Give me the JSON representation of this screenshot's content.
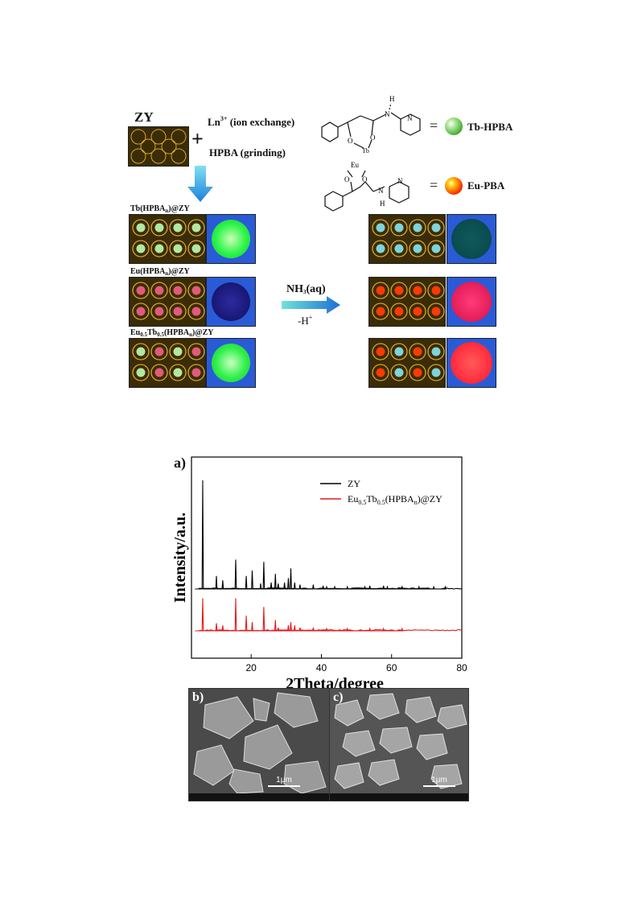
{
  "scheme": {
    "zy_label": "ZY",
    "plus": "+",
    "ln_text": "Ln",
    "ln_sup": "3+",
    "ln_suffix": " (ion exchange)",
    "hpba_text": "HPBA (grinding)",
    "equals": "=",
    "tb_hpba_label": "Tb-HPBA",
    "eu_pba_label": "Eu-PBA",
    "tb_hpba_color": "#5fbf4a",
    "eu_pba_color": "#ff3a00",
    "mol_top": {
      "h": "H",
      "n1": "N",
      "n2": "N",
      "o1": "O",
      "o2": "O",
      "ln": "Tb"
    },
    "mol_bottom": {
      "eu": "Eu",
      "o1": "O",
      "o2": "O",
      "n1": "N",
      "n2": "N",
      "h": "H"
    },
    "row1_label_pre": "Tb(HPBA",
    "row1_label_sub": "n",
    "row1_label_post": ")@ZY",
    "row2_label_pre": "Eu(HPBA",
    "row2_label_sub": "n",
    "row2_label_post": ")@ZY",
    "row3_label_a": "Eu",
    "row3_label_a_sub": "0.5",
    "row3_label_b": "Tb",
    "row3_label_b_sub": "0.5",
    "row3_label_c": "(HPBA",
    "row3_label_c_sub": "n",
    "row3_label_d": ")@ZY",
    "arrow_top_pre": "NH",
    "arrow_top_sub": "3",
    "arrow_top_post": "(aq)",
    "arrow_bottom_pre": "-H",
    "arrow_bottom_sup": "+",
    "photo_colors": {
      "row1_left": "#2bf548",
      "row2_left": "#1b1a7a",
      "row3_left": "#2ff04a",
      "row1_right": "#0b4b4e",
      "row2_right": "#e51f5a",
      "row3_right": "#ff3040",
      "background": "#2a5bd6"
    }
  },
  "panel_a_label": "a)",
  "panel_b_label": "b)",
  "panel_c_label": "c)",
  "scale_b": "1μm",
  "scale_c": "1μm",
  "chart_data": {
    "type": "line",
    "xlabel": "2Theta/degree",
    "ylabel": "Intensity/a.u.",
    "xlim": [
      3,
      80
    ],
    "xticks": [
      20,
      40,
      60,
      80
    ],
    "grid": false,
    "legend": "top-right",
    "series": [
      {
        "name": "ZY",
        "color": "#000000",
        "peaks": [
          [
            6.2,
            100
          ],
          [
            10.1,
            12
          ],
          [
            11.9,
            8
          ],
          [
            15.6,
            27
          ],
          [
            18.6,
            12
          ],
          [
            20.3,
            17
          ],
          [
            22.7,
            5
          ],
          [
            23.6,
            25
          ],
          [
            25.7,
            6
          ],
          [
            26.9,
            14
          ],
          [
            27.7,
            5
          ],
          [
            29.5,
            6
          ],
          [
            30.6,
            10
          ],
          [
            31.3,
            19
          ],
          [
            32.4,
            6
          ],
          [
            33.9,
            4
          ],
          [
            37.7,
            4
          ],
          [
            40.5,
            3
          ],
          [
            41.5,
            2
          ],
          [
            43.8,
            2
          ],
          [
            47.4,
            2
          ],
          [
            52.4,
            2
          ],
          [
            53.8,
            3
          ],
          [
            57.7,
            3
          ],
          [
            58.8,
            2
          ],
          [
            63.0,
            2
          ],
          [
            67.8,
            2
          ],
          [
            72.0,
            2
          ],
          [
            75.3,
            2
          ]
        ]
      },
      {
        "name_pre": "Eu",
        "name_sub1": "0.5",
        "name_mid": "Tb",
        "name_sub2": "0.5",
        "name_post": "(HPBA",
        "name_sub3": "n",
        "name_end": ")@ZY",
        "color": "#e31a1c",
        "peaks": [
          [
            6.2,
            30
          ],
          [
            10.1,
            7
          ],
          [
            11.9,
            5
          ],
          [
            15.6,
            30
          ],
          [
            18.6,
            14
          ],
          [
            20.3,
            8
          ],
          [
            23.6,
            22
          ],
          [
            26.9,
            10
          ],
          [
            27.7,
            3
          ],
          [
            30.6,
            5
          ],
          [
            31.3,
            8
          ],
          [
            32.4,
            5
          ],
          [
            33.9,
            3
          ],
          [
            37.7,
            3
          ],
          [
            41.5,
            2
          ],
          [
            47.4,
            2
          ],
          [
            53.8,
            2
          ],
          [
            57.7,
            2
          ],
          [
            63.0,
            2
          ]
        ]
      }
    ]
  }
}
